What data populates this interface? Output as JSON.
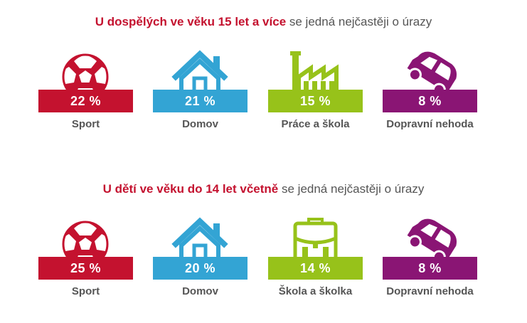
{
  "colors": {
    "sport": "#c4122f",
    "domov": "#33a4d4",
    "prace": "#97c21a",
    "nehoda": "#8a1574",
    "heading_highlight": "#c4122f",
    "text": "#555555"
  },
  "adults": {
    "heading_highlight": "U dospělých ve věku 15 let a více",
    "heading_rest": " se jedná nejčastěji o úrazy",
    "cards": [
      {
        "icon": "soccer-ball-icon",
        "value": "22 %",
        "label": "Sport"
      },
      {
        "icon": "house-icon",
        "value": "21 %",
        "label": "Domov"
      },
      {
        "icon": "factory-icon",
        "value": "15 %",
        "label": "Práce a škola"
      },
      {
        "icon": "overturned-car-icon",
        "value": "8 %",
        "label": "Dopravní nehoda"
      }
    ]
  },
  "children": {
    "heading_highlight": "U dětí ve věku do 14 let včetně",
    "heading_rest": " se jedná nejčastěji o úrazy",
    "cards": [
      {
        "icon": "soccer-ball-icon",
        "value": "25 %",
        "label": "Sport"
      },
      {
        "icon": "house-icon",
        "value": "20 %",
        "label": "Domov"
      },
      {
        "icon": "school-bag-icon",
        "value": "14 %",
        "label": "Škola a školka"
      },
      {
        "icon": "overturned-car-icon",
        "value": "8 %",
        "label": "Dopravní nehoda"
      }
    ]
  }
}
